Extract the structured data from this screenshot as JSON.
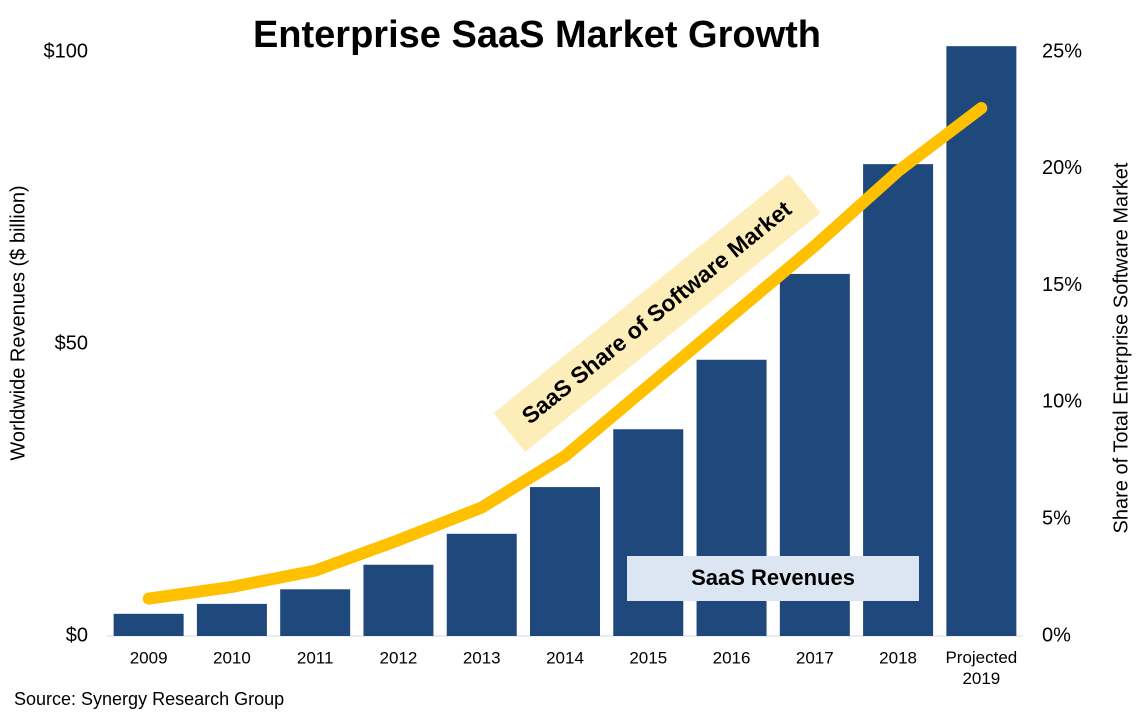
{
  "chart_data": {
    "type": "bar",
    "title": "Enterprise SaaS Market Growth",
    "y_label": "Worldwide Revenues ($ billion)",
    "y2_label": "Share of Total Enterprise Software Market",
    "source": "Source: Synergy Research Group",
    "categories": [
      "2009",
      "2010",
      "2011",
      "2012",
      "2013",
      "2014",
      "2015",
      "2016",
      "2017",
      "2018",
      "Projected 2019"
    ],
    "series": [
      {
        "name": "SaaS Revenues",
        "type": "bar",
        "color": "#1f497d",
        "values": [
          3.8,
          5.5,
          8,
          12.2,
          17.5,
          25.5,
          35.4,
          47.3,
          62,
          80.8,
          101
        ]
      },
      {
        "name": "SaaS Share of Software Market",
        "type": "line",
        "axis": "y2",
        "color": "#ffc000",
        "values": [
          1.6,
          2.1,
          2.8,
          4.1,
          5.5,
          7.7,
          10.7,
          13.7,
          16.7,
          19.9,
          22.6
        ]
      }
    ],
    "ylim": [
      0,
      100
    ],
    "yticks": [
      {
        "value": 0,
        "label": "$0"
      },
      {
        "value": 50,
        "label": "$50"
      },
      {
        "value": 100,
        "label": "$100"
      }
    ],
    "y2lim": [
      0,
      25
    ],
    "y2ticks": [
      {
        "value": 0,
        "label": "0%"
      },
      {
        "value": 5,
        "label": "5%"
      },
      {
        "value": 10,
        "label": "10%"
      },
      {
        "value": 15,
        "label": "15%"
      },
      {
        "value": 20,
        "label": "20%"
      },
      {
        "value": 25,
        "label": "25%"
      }
    ],
    "grid": false
  }
}
